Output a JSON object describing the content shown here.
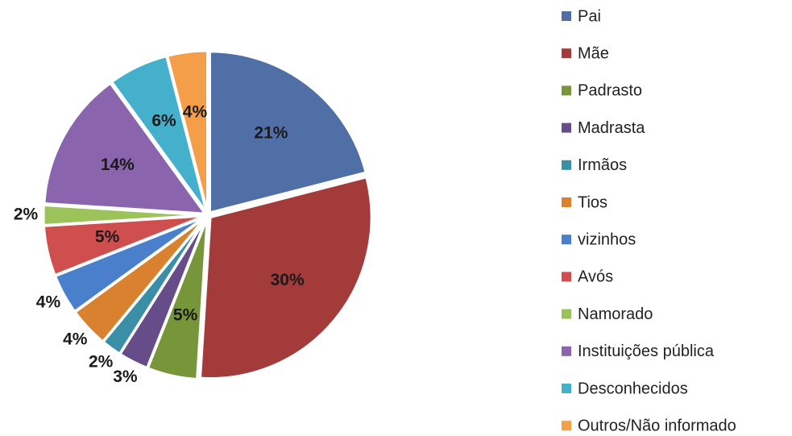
{
  "chart_data": {
    "type": "pie",
    "categories": [
      "Pai",
      "Mãe",
      "Padrasto",
      "Madrasta",
      "Irmãos",
      "Tios",
      "vizinhos",
      "Avós",
      "Namorado",
      "Instituições pública",
      "Desconhecidos",
      "Outros/Não informado"
    ],
    "values": [
      21,
      30,
      5,
      3,
      2,
      4,
      4,
      5,
      2,
      14,
      6,
      4
    ],
    "value_labels": [
      "21%",
      "30%",
      "5%",
      "3%",
      "2%",
      "4%",
      "4%",
      "5%",
      "2%",
      "14%",
      "6%",
      "4%"
    ],
    "colors": [
      "#4f6fa6",
      "#a33b3a",
      "#77963a",
      "#674c8a",
      "#3a8ea6",
      "#d9812e",
      "#4a7fcc",
      "#cf4f4f",
      "#9bc35a",
      "#8a64ad",
      "#45b0cc",
      "#f59e4a"
    ],
    "legend": "right"
  }
}
